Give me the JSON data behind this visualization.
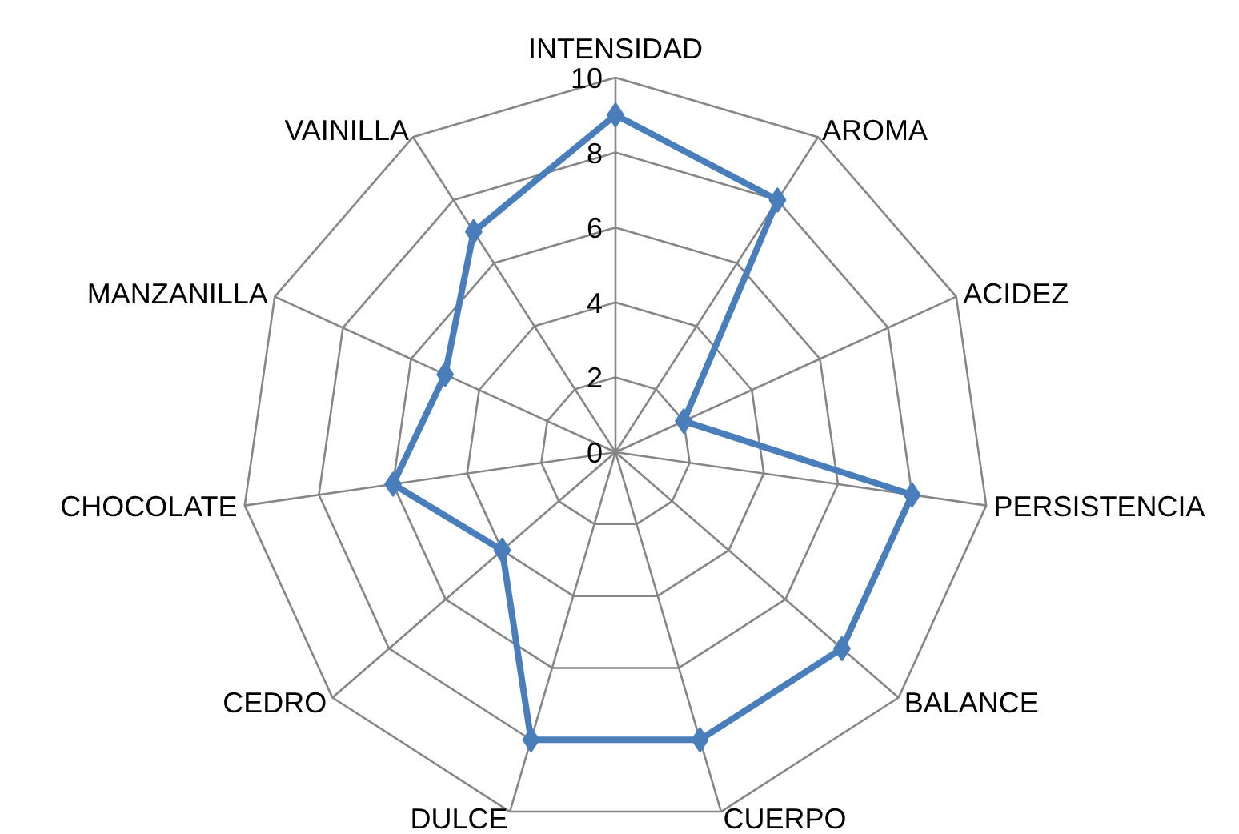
{
  "chart_data": {
    "type": "radar",
    "categories": [
      "INTENSIDAD",
      "AROMA",
      "ACIDEZ",
      "PERSISTENCIA",
      "BALANCE",
      "CUERPO",
      "DULCE",
      "CEDRO",
      "CHOCOLATE",
      "MANZANILLA",
      "VAINILLA"
    ],
    "series": [
      {
        "color": "#4a7ebb",
        "values": [
          9,
          8,
          2,
          8,
          8,
          8,
          8,
          4,
          6,
          5,
          7
        ]
      }
    ],
    "ylim": [
      0,
      10
    ],
    "yticks": [
      0,
      2,
      4,
      6,
      8,
      10
    ],
    "grid": true,
    "marker": "diamond",
    "line_style": "solid"
  }
}
